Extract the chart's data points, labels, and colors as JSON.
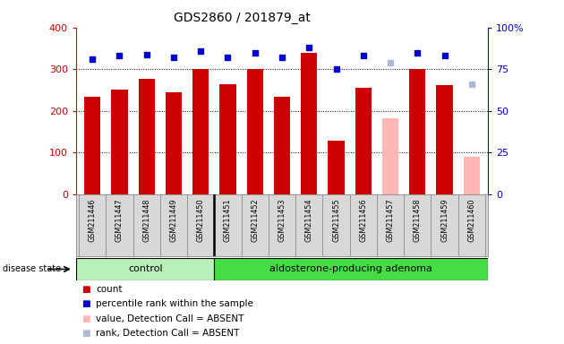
{
  "title": "GDS2860 / 201879_at",
  "samples": [
    "GSM211446",
    "GSM211447",
    "GSM211448",
    "GSM211449",
    "GSM211450",
    "GSM211451",
    "GSM211452",
    "GSM211453",
    "GSM211454",
    "GSM211455",
    "GSM211456",
    "GSM211457",
    "GSM211458",
    "GSM211459",
    "GSM211460"
  ],
  "counts": [
    234,
    251,
    277,
    245,
    300,
    265,
    300,
    235,
    340,
    128,
    256,
    0,
    300,
    261,
    0
  ],
  "counts_absent": [
    0,
    0,
    0,
    0,
    0,
    0,
    0,
    0,
    0,
    0,
    0,
    182,
    0,
    0,
    90
  ],
  "percentiles": [
    81,
    83,
    84,
    82,
    86,
    82,
    85,
    82,
    88,
    75,
    83,
    0,
    85,
    83,
    0
  ],
  "percentiles_absent": [
    0,
    0,
    0,
    0,
    0,
    0,
    0,
    0,
    0,
    0,
    0,
    79,
    0,
    0,
    66
  ],
  "absent_flags": [
    false,
    false,
    false,
    false,
    false,
    false,
    false,
    false,
    false,
    false,
    false,
    true,
    false,
    false,
    true
  ],
  "control_count": 5,
  "adenoma_count": 10,
  "ylim_left": [
    0,
    400
  ],
  "ylim_right": [
    0,
    100
  ],
  "yticks_left": [
    0,
    100,
    200,
    300,
    400
  ],
  "yticks_right": [
    0,
    25,
    50,
    75,
    100
  ],
  "bar_color_present": "#cc0000",
  "bar_color_absent": "#ffb6b6",
  "dot_color_present": "#0000cc",
  "dot_color_absent": "#b0b8d8",
  "bg_color": "#d8d8d8",
  "control_bg": "#b8f0b8",
  "adenoma_bg": "#44dd44",
  "legend_items": [
    "count",
    "percentile rank within the sample",
    "value, Detection Call = ABSENT",
    "rank, Detection Call = ABSENT"
  ],
  "disease_state_label": "disease state",
  "control_label": "control",
  "adenoma_label": "aldosterone-producing adenoma"
}
